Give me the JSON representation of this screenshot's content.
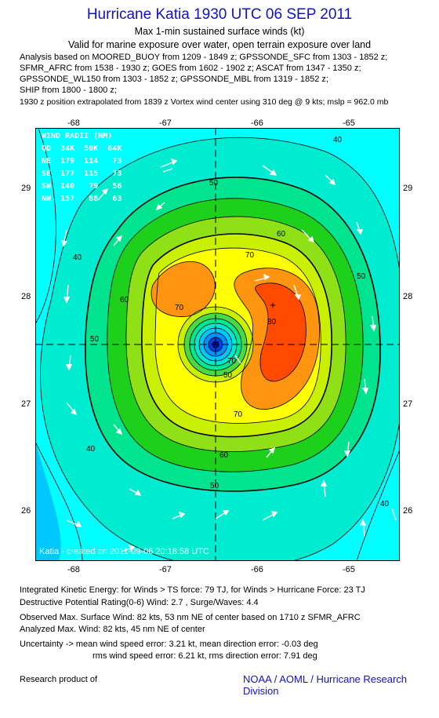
{
  "title": "Hurricane Katia 1930 UTC 06 SEP 2011",
  "subtitle1": "Max 1-min sustained surface winds (kt)",
  "subtitle2": "Valid for marine exposure over water, open terrain exposure over land",
  "analysis_lines": [
    "Analysis based on MOORED_BUOY from 1209 - 1849 z; GPSSONDE_SFC from 1303 - 1852 z;",
    "SFMR_AFRC from 1538 - 1930 z; GOES from 1602 - 1902 z; ASCAT from 1347 - 1350 z;",
    "GPSSONDE_WL150 from 1303 - 1852 z; GPSSONDE_MBL from 1319 - 1852 z;",
    "SHIP from 1800 - 1800 z;"
  ],
  "position_line": "1930 z position extrapolated from 1839 z Vortex wind center using 310 deg @ 9 kts; mslp = 962.0 mb",
  "x_ticks": [
    "-68",
    "-67",
    "-66",
    "-65"
  ],
  "y_ticks": [
    "29",
    "28",
    "27",
    "26"
  ],
  "wind_radii": {
    "header": "WIND RADII (NM)",
    "rows": [
      "QD  34K  50K  64K",
      "NE  179  114   73",
      "SE  177  115   73",
      "SW  140   79   56",
      "NW  157   88   63"
    ]
  },
  "contour_labels": [
    "40",
    "40",
    "40",
    "40",
    "50",
    "50",
    "50",
    "50",
    "60",
    "60",
    "60",
    "70",
    "70",
    "70",
    "80",
    "50",
    "70"
  ],
  "watermark": "Katia  -  created  on  2011-09-06 20:18:58  UTC",
  "footer": {
    "ike": "Integrated Kinetic Energy:  for Winds > TS force: 79 TJ,  for Winds > Hurricane Force: 23 TJ",
    "dpr": "Destructive Potential Rating(0-6)   Wind: 2.7 , Surge/Waves: 4.4",
    "obs": "Observed Max. Surface Wind: 82 kts, 53 nm NE of center based on 1710 z SFMR_AFRC",
    "analyzed": "Analyzed Max. Wind: 82 kts, 45 nm NE of center",
    "uncert1": "Uncertainty -> mean wind speed error: 3.21 kt,   mean direction error:  -0.03 deg",
    "uncert2": "rms wind speed error: 6.21 kt,   rms direction error: 7.91 deg",
    "research": "Research product of",
    "credit": "NOAA / AOML / Hurricane Research Division"
  },
  "colors": {
    "title": "#1010d0",
    "cyan": "#00ffff",
    "aqua": "#00e8c8",
    "seagreen": "#00e890",
    "green": "#10d010",
    "lightgreen": "#90e010",
    "yellowgreen": "#c8f000",
    "yellow": "#ffff00",
    "orange": "#ff9010",
    "redorange": "#ff4800"
  }
}
